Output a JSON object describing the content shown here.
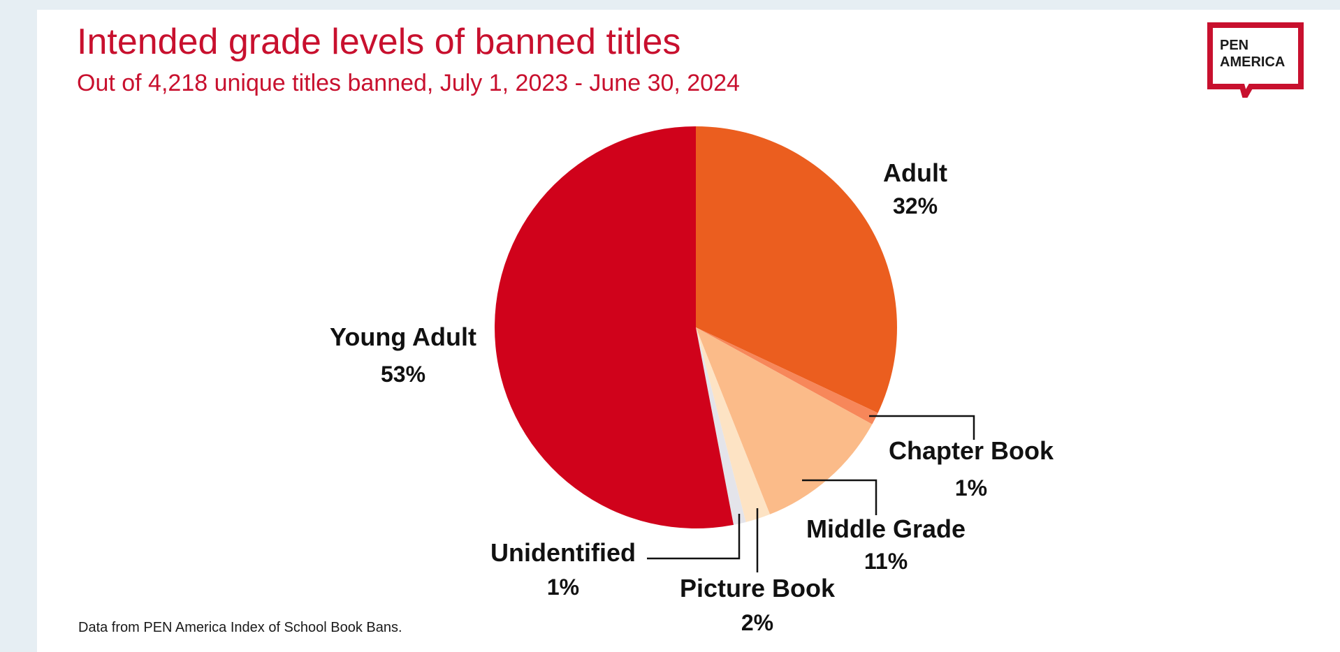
{
  "header": {
    "title": "Intended grade levels of banned titles",
    "subtitle": "Out of 4,218 unique titles banned, July 1, 2023 - June 30, 2024"
  },
  "logo": {
    "line1": "PEN",
    "line2": "AMERICA",
    "color": "#c8102e"
  },
  "footer": {
    "source": "Data from PEN America Index of School Book Bans."
  },
  "chart_data": {
    "type": "pie",
    "title": "Intended grade levels of banned titles",
    "subtitle": "Out of 4,218 unique titles banned, July 1, 2023 - June 30, 2024",
    "slices": [
      {
        "label": "Adult",
        "value": 32,
        "value_label": "32%",
        "color": "#eb5e1f"
      },
      {
        "label": "Chapter Book",
        "value": 1,
        "value_label": "1%",
        "color": "#f7875a"
      },
      {
        "label": "Middle Grade",
        "value": 11,
        "value_label": "11%",
        "color": "#fbbb89"
      },
      {
        "label": "Picture Book",
        "value": 2,
        "value_label": "2%",
        "color": "#fde3c4"
      },
      {
        "label": "Unidentified",
        "value": 1,
        "value_label": "1%",
        "color": "#e4e4ea"
      },
      {
        "label": "Young Adult",
        "value": 53,
        "value_label": "53%",
        "color": "#d0021b"
      }
    ]
  }
}
